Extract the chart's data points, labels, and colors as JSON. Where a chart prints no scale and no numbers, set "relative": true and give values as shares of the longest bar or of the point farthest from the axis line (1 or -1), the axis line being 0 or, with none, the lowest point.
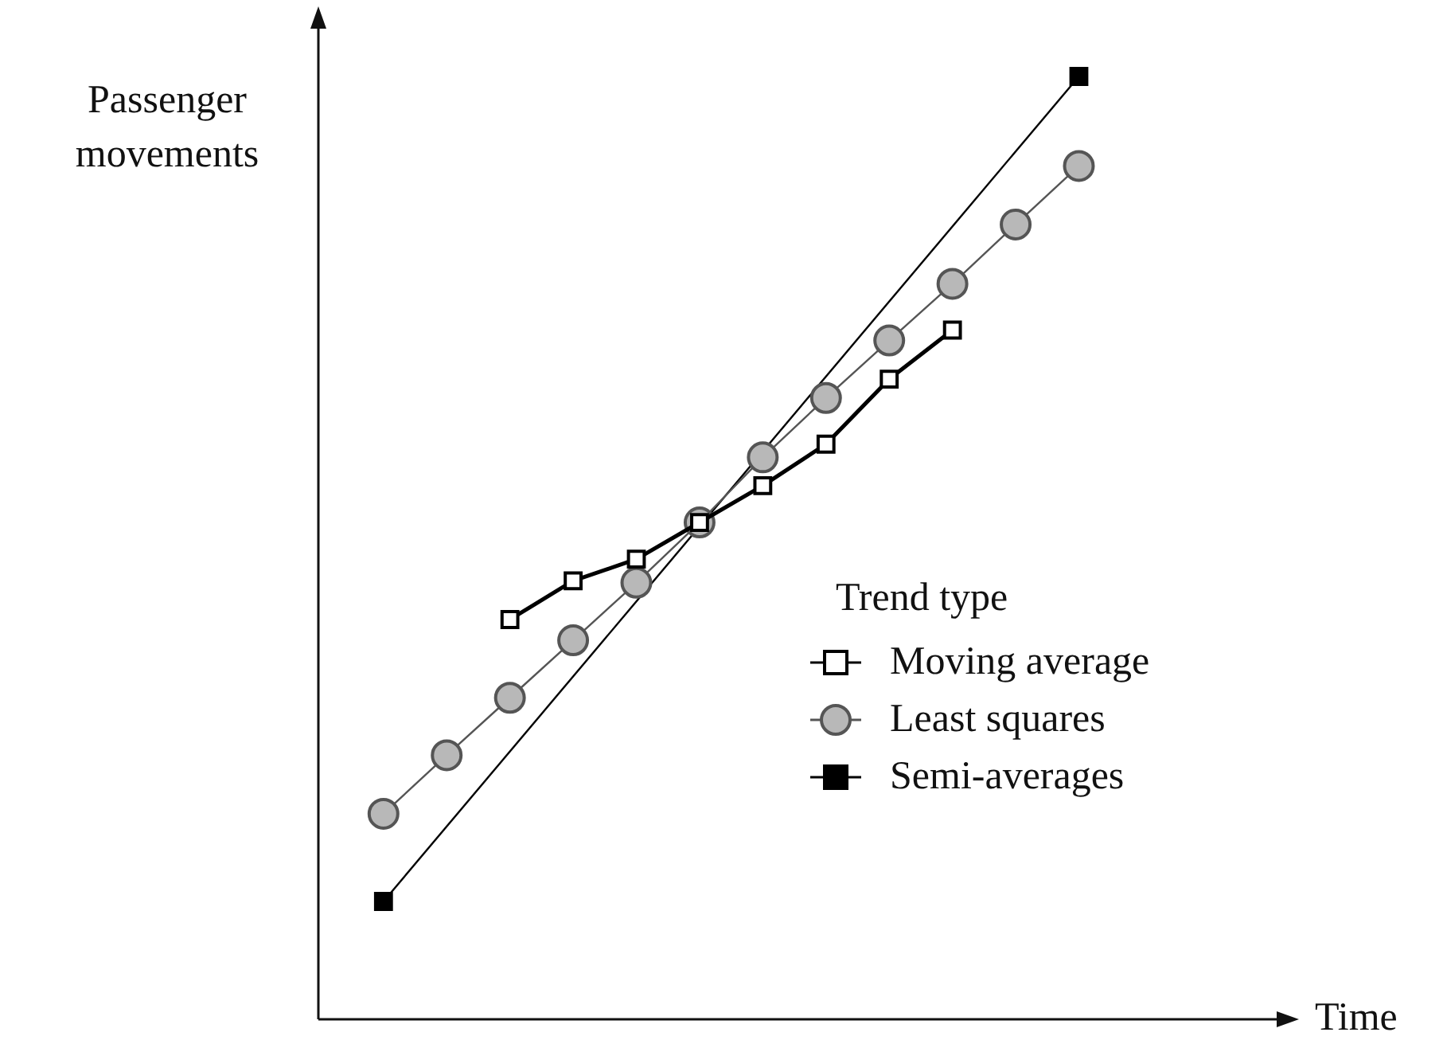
{
  "chart_data": {
    "type": "line",
    "relative": true,
    "annotations": [
      "Time"
    ],
    "ylabel": "Passenger movements",
    "legend_title": "Trend type",
    "legend": "right",
    "categories": [
      null,
      null,
      null,
      null,
      null,
      null,
      null,
      null,
      null,
      null,
      null,
      null
    ],
    "series": [
      {
        "name": "Moving average",
        "color": "#000000",
        "marker": "square",
        "values": [
          null,
          null,
          0.424,
          0.465,
          0.488,
          0.527,
          0.566,
          0.61,
          0.679,
          0.731,
          null,
          null
        ]
      },
      {
        "name": "Least squares",
        "color": "#555555",
        "marker": "circle",
        "values": [
          0.218,
          0.28,
          0.341,
          0.402,
          0.463,
          0.527,
          0.596,
          0.659,
          0.72,
          0.78,
          0.843,
          0.905
        ]
      },
      {
        "name": "Semi-averages",
        "color": "#000000",
        "marker": "square",
        "values": [
          0.125,
          null,
          null,
          null,
          null,
          null,
          null,
          null,
          null,
          null,
          null,
          1
        ]
      }
    ]
  }
}
